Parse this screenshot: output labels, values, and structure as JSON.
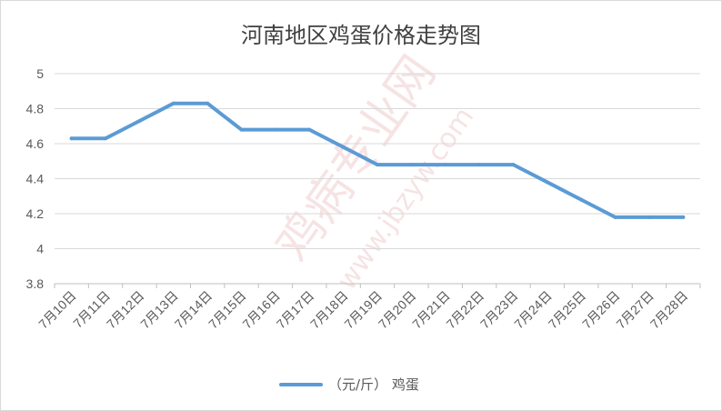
{
  "chart_data": {
    "type": "line",
    "title": "河南地区鸡蛋价格走势图",
    "categories": [
      "7月10日",
      "7月11日",
      "7月12日",
      "7月13日",
      "7月14日",
      "7月15日",
      "7月16日",
      "7月17日",
      "7月18日",
      "7月19日",
      "7月20日",
      "7月21日",
      "7月22日",
      "7月23日",
      "7月24日",
      "7月25日",
      "7月26日",
      "7月27日",
      "7月28日"
    ],
    "series": [
      {
        "name": "（元/斤） 鸡蛋",
        "color": "#5b9bd5",
        "values": [
          4.63,
          4.63,
          4.73,
          4.83,
          4.83,
          4.68,
          4.68,
          4.68,
          4.58,
          4.48,
          4.48,
          4.48,
          4.48,
          4.48,
          4.38,
          4.28,
          4.18,
          4.18,
          4.18
        ]
      }
    ],
    "ylim": [
      3.8,
      5
    ],
    "yticks": [
      "5",
      "4.8",
      "4.6",
      "4.4",
      "4.2",
      "4",
      "3.8"
    ],
    "grid": true,
    "legend_position": "bottom"
  },
  "watermark": {
    "large": "鸡病专业网",
    "url": "www.jbzyw.com"
  },
  "colors": {
    "gridline": "#d9d9d9",
    "axis": "#bfbfbf",
    "line": "#5b9bd5",
    "watermark": "#e8b0b0"
  }
}
